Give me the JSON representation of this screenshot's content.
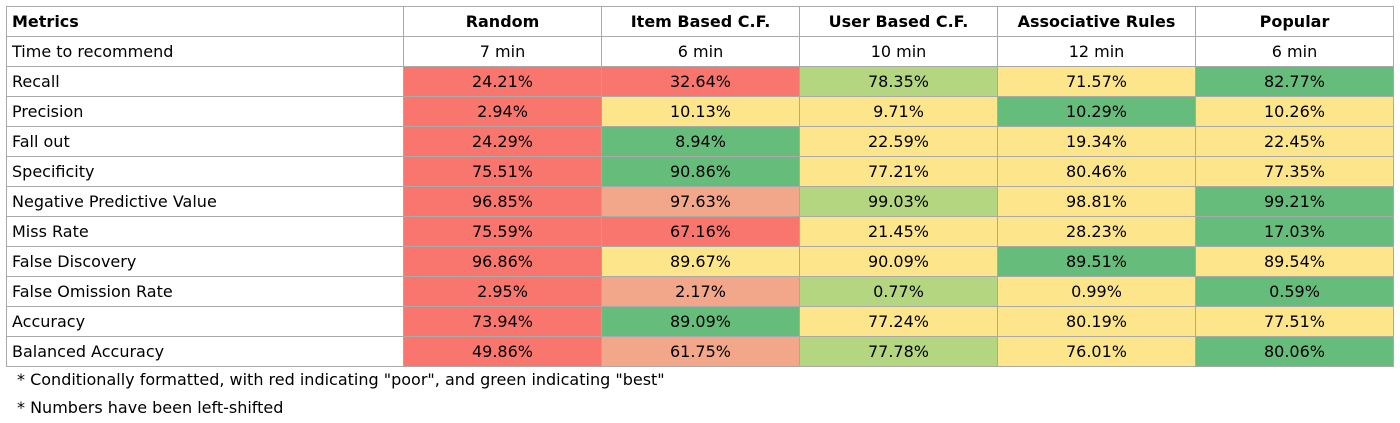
{
  "table": {
    "headers": [
      "Metrics",
      "Random",
      "Item Based C.F.",
      "User Based C.F.",
      "Associative Rules",
      "Popular"
    ],
    "time_row": {
      "label": "Time to recommend",
      "values": [
        "7 min",
        "6 min",
        "10 min",
        "12 min",
        "6 min"
      ]
    },
    "rows": [
      {
        "label": "Recall",
        "values": [
          "24.21%",
          "32.64%",
          "78.35%",
          "71.57%",
          "82.77%"
        ],
        "shades": [
          "r",
          "r",
          "lg",
          "y",
          "g"
        ]
      },
      {
        "label": "Precision",
        "values": [
          "2.94%",
          "10.13%",
          "9.71%",
          "10.29%",
          "10.26%"
        ],
        "shades": [
          "r",
          "y",
          "y",
          "g",
          "y"
        ]
      },
      {
        "label": "Fall out",
        "values": [
          "24.29%",
          "8.94%",
          "22.59%",
          "19.34%",
          "22.45%"
        ],
        "shades": [
          "r",
          "g",
          "y",
          "y",
          "y"
        ]
      },
      {
        "label": "Specificity",
        "values": [
          "75.51%",
          "90.86%",
          "77.21%",
          "80.46%",
          "77.35%"
        ],
        "shades": [
          "r",
          "g",
          "y",
          "y",
          "y"
        ]
      },
      {
        "label": "Negative Predictive Value",
        "values": [
          "96.85%",
          "97.63%",
          "99.03%",
          "98.81%",
          "99.21%"
        ],
        "shades": [
          "r",
          "lr",
          "lg",
          "y",
          "g"
        ]
      },
      {
        "label": "Miss Rate",
        "values": [
          "75.59%",
          "67.16%",
          "21.45%",
          "28.23%",
          "17.03%"
        ],
        "shades": [
          "r",
          "r",
          "y",
          "y",
          "g"
        ]
      },
      {
        "label": "False Discovery",
        "values": [
          "96.86%",
          "89.67%",
          "90.09%",
          "89.51%",
          "89.54%"
        ],
        "shades": [
          "r",
          "y",
          "y",
          "g",
          "y"
        ]
      },
      {
        "label": "False Omission Rate",
        "values": [
          "2.95%",
          "2.17%",
          "0.77%",
          "0.99%",
          "0.59%"
        ],
        "shades": [
          "r",
          "lr",
          "lg",
          "y",
          "g"
        ]
      },
      {
        "label": "Accuracy",
        "values": [
          "73.94%",
          "89.09%",
          "77.24%",
          "80.19%",
          "77.51%"
        ],
        "shades": [
          "r",
          "g",
          "y",
          "y",
          "y"
        ]
      },
      {
        "label": "Balanced Accuracy",
        "values": [
          "49.86%",
          "61.75%",
          "77.78%",
          "76.01%",
          "80.06%"
        ],
        "shades": [
          "r",
          "lr",
          "lg",
          "y",
          "g"
        ]
      }
    ]
  },
  "notes": [
    "* Conditionally formatted, with red indicating \"poor\", and green indicating \"best\"",
    "* Numbers have been left-shifted"
  ],
  "colors": {
    "poor": "#f8766d",
    "poor_light": "#f3a78a",
    "middle": "#fce58a",
    "good_light": "#b5d680",
    "best": "#66bd7b",
    "border": "#a9a9a9"
  }
}
